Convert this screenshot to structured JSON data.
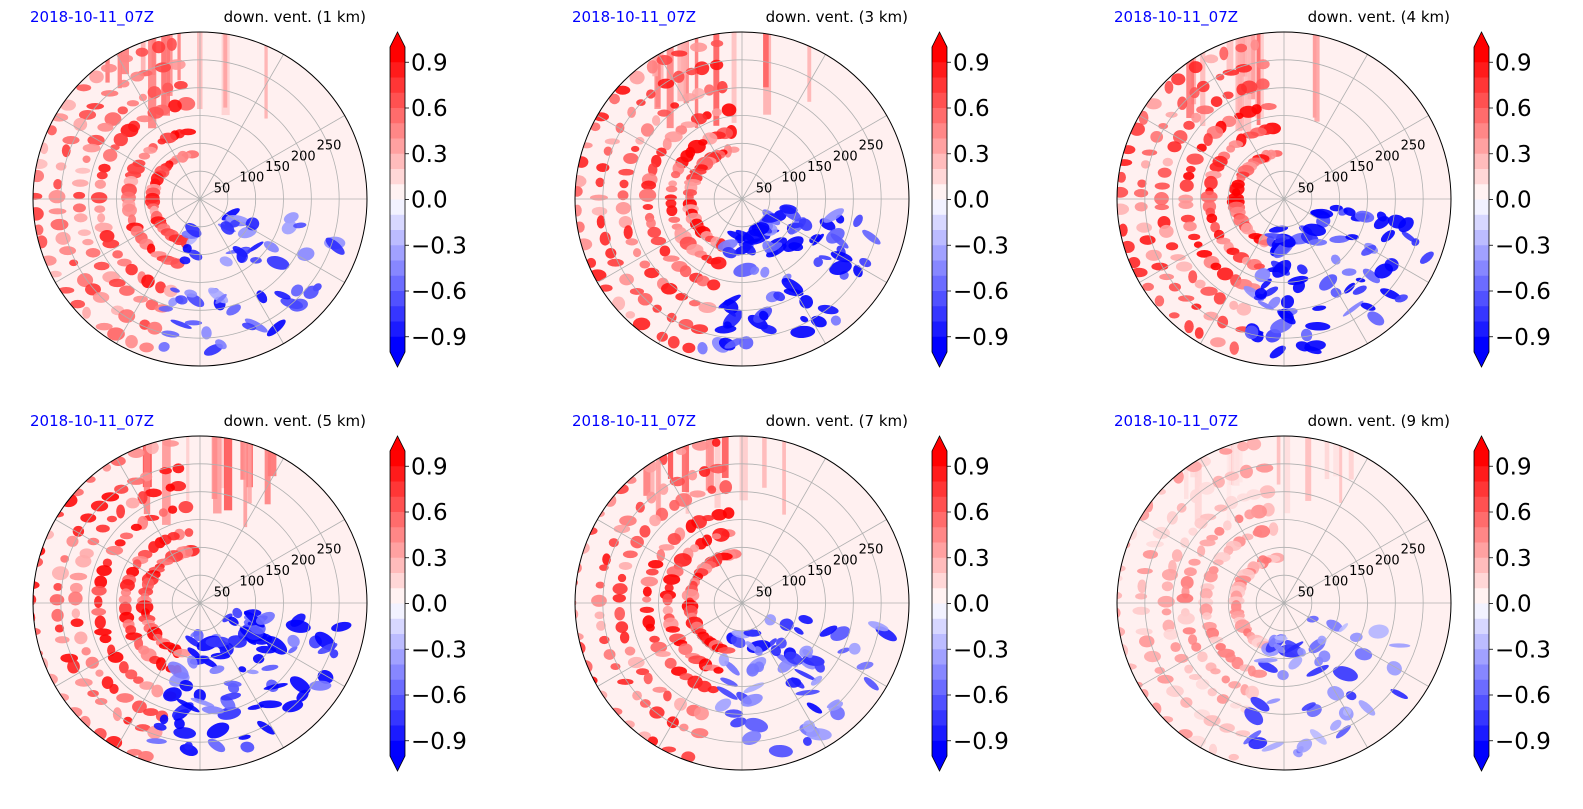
{
  "figure": {
    "colors": {
      "time_label": "#0000ff",
      "positive": "#ff0000",
      "negative": "#0000ff",
      "grid": "#b0b0b0",
      "outline": "#000000"
    }
  },
  "chart_data": [
    {
      "type": "heatmap",
      "projection": "polar",
      "title_left": "2018-10-11_07Z",
      "title_right": "down. vent. (1 km)",
      "radial_ticks": [
        "50",
        "100",
        "150",
        "200",
        "250"
      ],
      "colorbar": {
        "ticks": [
          "0.9",
          "0.6",
          "0.3",
          "0.0",
          "−0.3",
          "−0.6",
          "−0.9"
        ],
        "vmin": -1.0,
        "vmax": 1.0,
        "extend": "both",
        "colormap": "bwr"
      }
    },
    {
      "type": "heatmap",
      "projection": "polar",
      "title_left": "2018-10-11_07Z",
      "title_right": "down. vent. (3 km)",
      "radial_ticks": [
        "50",
        "100",
        "150",
        "200",
        "250"
      ],
      "colorbar": {
        "ticks": [
          "0.9",
          "0.6",
          "0.3",
          "0.0",
          "−0.3",
          "−0.6",
          "−0.9"
        ],
        "vmin": -1.0,
        "vmax": 1.0,
        "extend": "both",
        "colormap": "bwr"
      }
    },
    {
      "type": "heatmap",
      "projection": "polar",
      "title_left": "2018-10-11_07Z",
      "title_right": "down. vent. (4 km)",
      "radial_ticks": [
        "50",
        "100",
        "150",
        "200",
        "250"
      ],
      "colorbar": {
        "ticks": [
          "0.9",
          "0.6",
          "0.3",
          "0.0",
          "−0.3",
          "−0.6",
          "−0.9"
        ],
        "vmin": -1.0,
        "vmax": 1.0,
        "extend": "both",
        "colormap": "bwr"
      }
    },
    {
      "type": "heatmap",
      "projection": "polar",
      "title_left": "2018-10-11_07Z",
      "title_right": "down. vent. (5 km)",
      "radial_ticks": [
        "50",
        "100",
        "150",
        "200",
        "250"
      ],
      "colorbar": {
        "ticks": [
          "0.9",
          "0.6",
          "0.3",
          "0.0",
          "−0.3",
          "−0.6",
          "−0.9"
        ],
        "vmin": -1.0,
        "vmax": 1.0,
        "extend": "both",
        "colormap": "bwr"
      }
    },
    {
      "type": "heatmap",
      "projection": "polar",
      "title_left": "2018-10-11_07Z",
      "title_right": "down. vent. (7 km)",
      "radial_ticks": [
        "50",
        "100",
        "150",
        "200",
        "250"
      ],
      "colorbar": {
        "ticks": [
          "0.9",
          "0.6",
          "0.3",
          "0.0",
          "−0.3",
          "−0.6",
          "−0.9"
        ],
        "vmin": -1.0,
        "vmax": 1.0,
        "extend": "both",
        "colormap": "bwr"
      }
    },
    {
      "type": "heatmap",
      "projection": "polar",
      "title_left": "2018-10-11_07Z",
      "title_right": "down. vent. (9 km)",
      "radial_ticks": [
        "50",
        "100",
        "150",
        "200",
        "250"
      ],
      "colorbar": {
        "ticks": [
          "0.9",
          "0.6",
          "0.3",
          "0.0",
          "−0.3",
          "−0.6",
          "−0.9"
        ],
        "vmin": -1.0,
        "vmax": 1.0,
        "extend": "both",
        "colormap": "bwr"
      }
    }
  ]
}
